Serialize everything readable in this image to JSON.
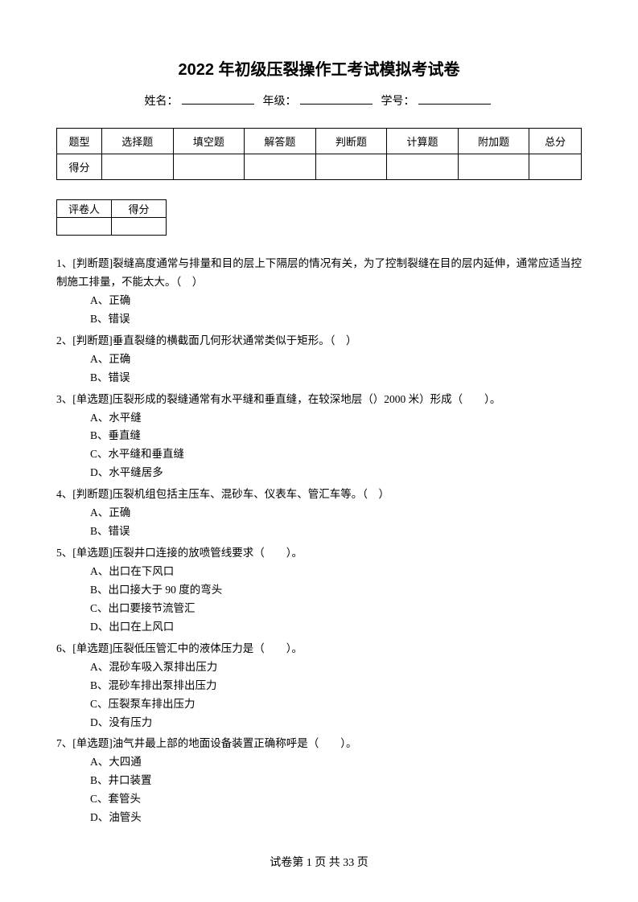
{
  "title": "2022 年初级压裂操作工考试模拟考试卷",
  "info": {
    "name_label": "姓名：",
    "grade_label": "年级：",
    "id_label": "学号："
  },
  "score_table": {
    "row1_label": "题型",
    "headers": [
      "选择题",
      "填空题",
      "解答题",
      "判断题",
      "计算题",
      "附加题",
      "总分"
    ],
    "row2_label": "得分"
  },
  "grader_table": {
    "col1": "评卷人",
    "col2": "得分"
  },
  "questions": [
    {
      "num": "1、",
      "text": "[判断题]裂缝高度通常与排量和目的层上下隔层的情况有关，为了控制裂缝在目的层内延伸，通常应适当控制施工排量，不能太大。（　）",
      "options": [
        "A、正确",
        "B、错误"
      ]
    },
    {
      "num": "2、",
      "text": "[判断题]垂直裂缝的横截面几何形状通常类似于矩形。（　）",
      "options": [
        "A、正确",
        "B、错误"
      ]
    },
    {
      "num": "3、",
      "text": "[单选题]压裂形成的裂缝通常有水平缝和垂直缝，在较深地层（）2000 米）形成（　　）。",
      "options": [
        "A、水平缝",
        "B、垂直缝",
        "C、水平缝和垂直缝",
        "D、水平缝居多"
      ]
    },
    {
      "num": "4、",
      "text": "[判断题]压裂机组包括主压车、混砂车、仪表车、管汇车等。（　）",
      "options": [
        "A、正确",
        "B、错误"
      ]
    },
    {
      "num": "5、",
      "text": "[单选题]压裂井口连接的放喷管线要求（　　）。",
      "options": [
        "A、出口在下风口",
        "B、出口接大于 90 度的弯头",
        "C、出口要接节流管汇",
        "D、出口在上风口"
      ]
    },
    {
      "num": "6、",
      "text": "[单选题]压裂低压管汇中的液体压力是（　　）。",
      "options": [
        "A、混砂车吸入泵排出压力",
        "B、混砂车排出泵排出压力",
        "C、压裂泵车排出压力",
        "D、没有压力"
      ]
    },
    {
      "num": "7、",
      "text": "[单选题]油气井最上部的地面设备装置正确称呼是（　　）。",
      "options": [
        "A、大四通",
        "B、井口装置",
        "C、套管头",
        "D、油管头"
      ]
    }
  ],
  "footer": {
    "prefix": "试卷第 ",
    "page": "1",
    "mid": " 页 共 ",
    "total": "33",
    "suffix": " 页"
  }
}
